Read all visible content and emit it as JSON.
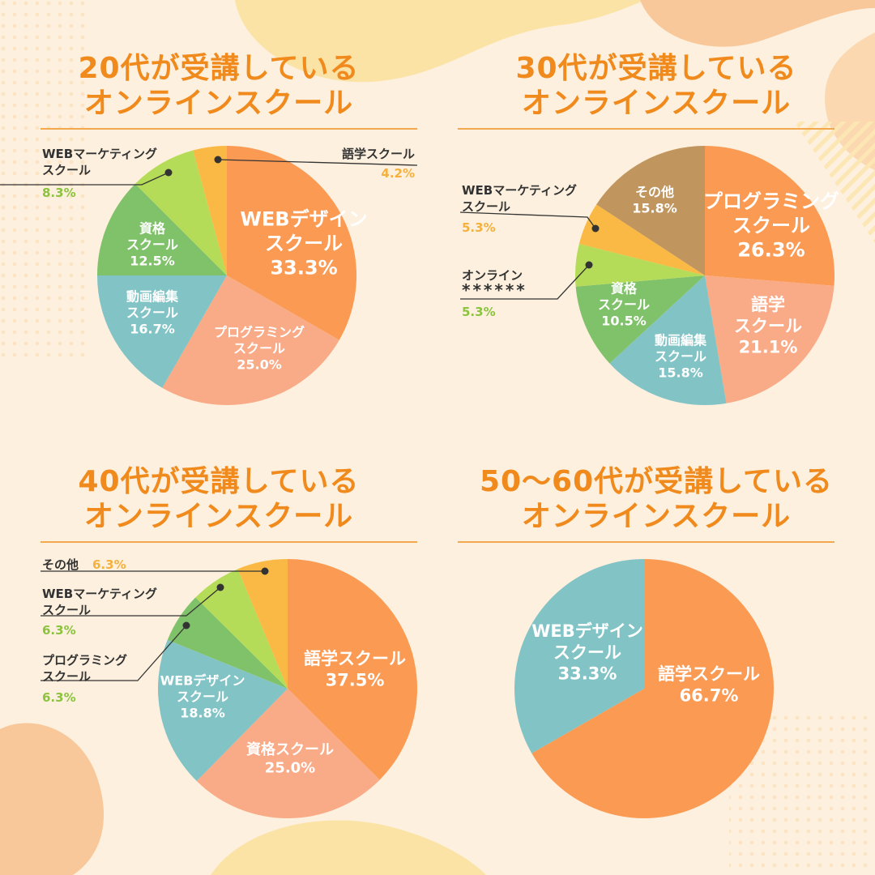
{
  "colors": {
    "background": "#fdf0de",
    "title": "#f08a1c",
    "rule": "#f2a94e",
    "leader": "#333333",
    "outside_name": "#333333"
  },
  "panels": [
    {
      "title_line1": "20代が受講している",
      "title_line2": "オンラインスクール"
    },
    {
      "title_line1": "30代が受講している",
      "title_line2": "オンラインスクール"
    },
    {
      "title_line1": "40代が受講している",
      "title_line2": "オンラインスクール"
    },
    {
      "title_line1": "50〜60代が受講している",
      "title_line2": "オンラインスクール"
    }
  ],
  "chart_data": [
    {
      "type": "pie",
      "title": "20代が受講している オンラインスクール",
      "start": "12 o'clock",
      "direction": "clockwise",
      "slices": [
        {
          "label": "WEBデザイン スクール",
          "value": 33.3,
          "value_text": "33.3%",
          "color": "#fb9a53",
          "placement": "inside"
        },
        {
          "label": "プログラミング スクール",
          "value": 25.0,
          "value_text": "25.0%",
          "color": "#f9aa86",
          "placement": "inside"
        },
        {
          "label": "動画編集 スクール",
          "value": 16.7,
          "value_text": "16.7%",
          "color": "#82c4c6",
          "placement": "inside"
        },
        {
          "label": "資格 スクール",
          "value": 12.5,
          "value_text": "12.5%",
          "color": "#80c26a",
          "placement": "inside"
        },
        {
          "label": "WEBマーケティング スクール",
          "value": 8.3,
          "value_text": "8.3%",
          "color": "#b5dc58",
          "value_color": "#8bc33e",
          "placement": "outside"
        },
        {
          "label": "語学スクール",
          "value": 4.2,
          "value_text": "4.2%",
          "color": "#f9b944",
          "value_color": "#f4b13e",
          "placement": "outside"
        }
      ]
    },
    {
      "type": "pie",
      "title": "30代が受講している オンラインスクール",
      "start": "12 o'clock",
      "direction": "clockwise",
      "slices": [
        {
          "label": "プログラミング スクール",
          "value": 26.3,
          "value_text": "26.3%",
          "color": "#fb9a53",
          "placement": "inside"
        },
        {
          "label": "語学 スクール",
          "value": 21.1,
          "value_text": "21.1%",
          "color": "#f9aa86",
          "placement": "inside"
        },
        {
          "label": "動画編集 スクール",
          "value": 15.8,
          "value_text": "15.8%",
          "color": "#82c4c6",
          "placement": "inside"
        },
        {
          "label": "資格 スクール",
          "value": 10.5,
          "value_text": "10.5%",
          "color": "#80c26a",
          "placement": "inside"
        },
        {
          "label": "オンライン ******",
          "value": 5.3,
          "value_text": "5.3%",
          "color": "#b5dc58",
          "value_color": "#8bc33e",
          "placement": "outside"
        },
        {
          "label": "WEBマーケティング スクール",
          "value": 5.3,
          "value_text": "5.3%",
          "color": "#f9b944",
          "value_color": "#f4b13e",
          "placement": "outside"
        },
        {
          "label": "その他",
          "value": 15.8,
          "value_text": "15.8%",
          "color": "#c1955e",
          "placement": "inside"
        }
      ]
    },
    {
      "type": "pie",
      "title": "40代が受講している オンラインスクール",
      "start": "12 o'clock",
      "direction": "clockwise",
      "slices": [
        {
          "label": "語学スクール",
          "value": 37.5,
          "value_text": "37.5%",
          "color": "#fb9a53",
          "placement": "inside"
        },
        {
          "label": "資格スクール",
          "value": 25.0,
          "value_text": "25.0%",
          "color": "#f9aa86",
          "placement": "inside"
        },
        {
          "label": "WEBデザイン スクール",
          "value": 18.8,
          "value_text": "18.8%",
          "color": "#82c4c6",
          "placement": "inside"
        },
        {
          "label": "プログラミング スクール",
          "value": 6.3,
          "value_text": "6.3%",
          "color": "#80c26a",
          "value_color": "#8bc33e",
          "placement": "outside"
        },
        {
          "label": "WEBマーケティング スクール",
          "value": 6.3,
          "value_text": "6.3%",
          "color": "#b5dc58",
          "value_color": "#8bc33e",
          "placement": "outside"
        },
        {
          "label": "その他",
          "value": 6.3,
          "value_text": "6.3%",
          "color": "#f9b944",
          "value_color": "#f4b13e",
          "placement": "outside"
        }
      ]
    },
    {
      "type": "pie",
      "title": "50〜60代が受講している オンラインスクール",
      "start": "12 o'clock",
      "direction": "clockwise",
      "slices": [
        {
          "label": "語学スクール",
          "value": 66.7,
          "value_text": "66.7%",
          "color": "#fb9a53",
          "placement": "inside"
        },
        {
          "label": "WEBデザイン スクール",
          "value": 33.3,
          "value_text": "33.3%",
          "color": "#82c4c6",
          "placement": "inside"
        }
      ]
    }
  ]
}
